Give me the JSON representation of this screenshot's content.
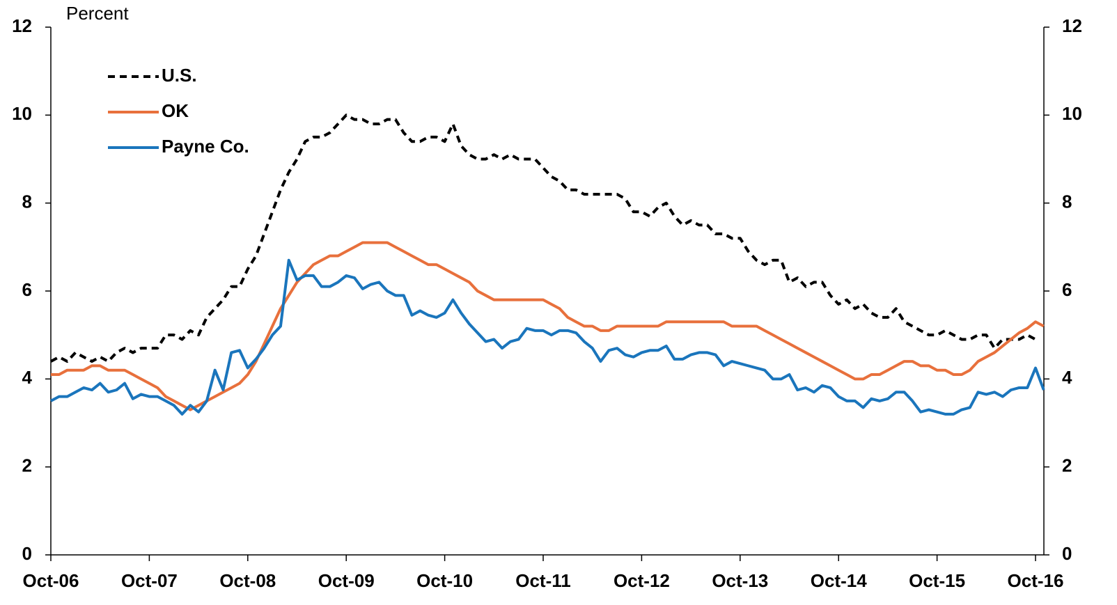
{
  "chart_data": {
    "type": "line",
    "y_label": "Percent",
    "legend": "upper left",
    "grid": false,
    "x": [
      "Oct-06",
      null,
      null,
      null,
      null,
      null,
      null,
      null,
      null,
      null,
      null,
      null,
      "Oct-07",
      null,
      null,
      null,
      null,
      null,
      null,
      null,
      null,
      null,
      null,
      null,
      "Oct-08",
      null,
      null,
      null,
      null,
      null,
      null,
      null,
      null,
      null,
      null,
      null,
      "Oct-09",
      null,
      null,
      null,
      null,
      null,
      null,
      null,
      null,
      null,
      null,
      null,
      "Oct-10",
      null,
      null,
      null,
      null,
      null,
      null,
      null,
      null,
      null,
      null,
      null,
      "Oct-11",
      null,
      null,
      null,
      null,
      null,
      null,
      null,
      null,
      null,
      null,
      null,
      "Oct-12",
      null,
      null,
      null,
      null,
      null,
      null,
      null,
      null,
      null,
      null,
      null,
      "Oct-13",
      null,
      null,
      null,
      null,
      null,
      null,
      null,
      null,
      null,
      null,
      null,
      "Oct-14",
      null,
      null,
      null,
      null,
      null,
      null,
      null,
      null,
      null,
      null,
      null,
      "Oct-15",
      null,
      null,
      null,
      null,
      null,
      null,
      null,
      null,
      null,
      null,
      null,
      "Oct-16",
      null
    ],
    "series": [
      {
        "name": "U.S.",
        "color": "#000000",
        "dash": true,
        "values": [
          4.4,
          4.5,
          4.4,
          4.6,
          4.5,
          4.4,
          4.5,
          4.4,
          4.6,
          4.7,
          4.6,
          4.7,
          4.7,
          4.7,
          5.0,
          5.0,
          4.9,
          5.1,
          5.0,
          5.4,
          5.6,
          5.8,
          6.1,
          6.1,
          6.5,
          6.8,
          7.3,
          7.8,
          8.3,
          8.7,
          9.0,
          9.4,
          9.5,
          9.5,
          9.6,
          9.8,
          10.0,
          9.9,
          9.9,
          9.8,
          9.8,
          9.9,
          9.9,
          9.6,
          9.4,
          9.4,
          9.5,
          9.5,
          9.4,
          9.8,
          9.3,
          9.1,
          9.0,
          9.0,
          9.1,
          9.0,
          9.1,
          9.0,
          9.0,
          9.0,
          8.8,
          8.6,
          8.5,
          8.3,
          8.3,
          8.2,
          8.2,
          8.2,
          8.2,
          8.2,
          8.1,
          7.8,
          7.8,
          7.7,
          7.9,
          8.0,
          7.7,
          7.5,
          7.6,
          7.5,
          7.5,
          7.3,
          7.3,
          7.2,
          7.2,
          6.9,
          6.7,
          6.6,
          6.7,
          6.7,
          6.2,
          6.3,
          6.1,
          6.2,
          6.2,
          5.9,
          5.7,
          5.8,
          5.6,
          5.7,
          5.5,
          5.4,
          5.4,
          5.6,
          5.3,
          5.2,
          5.1,
          5.0,
          5.0,
          5.1,
          5.0,
          4.9,
          4.9,
          5.0,
          5.0,
          4.7,
          4.9,
          4.9,
          4.9,
          5.0,
          4.9,
          null
        ]
      },
      {
        "name": "OK",
        "color": "#e8703c",
        "dash": false,
        "values": [
          4.1,
          4.1,
          4.2,
          4.2,
          4.2,
          4.3,
          4.3,
          4.2,
          4.2,
          4.2,
          4.1,
          4.0,
          3.9,
          3.8,
          3.6,
          3.5,
          3.4,
          3.3,
          3.4,
          3.5,
          3.6,
          3.7,
          3.8,
          3.9,
          4.1,
          4.4,
          4.8,
          5.2,
          5.6,
          5.9,
          6.2,
          6.4,
          6.6,
          6.7,
          6.8,
          6.8,
          6.9,
          7.0,
          7.1,
          7.1,
          7.1,
          7.1,
          7.0,
          6.9,
          6.8,
          6.7,
          6.6,
          6.6,
          6.5,
          6.4,
          6.3,
          6.2,
          6.0,
          5.9,
          5.8,
          5.8,
          5.8,
          5.8,
          5.8,
          5.8,
          5.8,
          5.7,
          5.6,
          5.4,
          5.3,
          5.2,
          5.2,
          5.1,
          5.1,
          5.2,
          5.2,
          5.2,
          5.2,
          5.2,
          5.2,
          5.3,
          5.3,
          5.3,
          5.3,
          5.3,
          5.3,
          5.3,
          5.3,
          5.2,
          5.2,
          5.2,
          5.2,
          5.1,
          5.0,
          4.9,
          4.8,
          4.7,
          4.6,
          4.5,
          4.4,
          4.3,
          4.2,
          4.1,
          4.0,
          4.0,
          4.1,
          4.1,
          4.2,
          4.3,
          4.4,
          4.4,
          4.3,
          4.3,
          4.2,
          4.2,
          4.1,
          4.1,
          4.2,
          4.4,
          4.5,
          4.6,
          4.75,
          4.9,
          5.05,
          5.15,
          5.3,
          5.2
        ]
      },
      {
        "name": "Payne Co.",
        "color": "#1a75bc",
        "dash": false,
        "values": [
          3.5,
          3.6,
          3.6,
          3.7,
          3.8,
          3.75,
          3.9,
          3.7,
          3.75,
          3.9,
          3.55,
          3.65,
          3.6,
          3.6,
          3.5,
          3.4,
          3.2,
          3.4,
          3.25,
          3.5,
          4.2,
          3.75,
          4.6,
          4.65,
          4.25,
          4.45,
          4.7,
          5.0,
          5.2,
          6.7,
          6.25,
          6.35,
          6.35,
          6.1,
          6.1,
          6.2,
          6.35,
          6.3,
          6.05,
          6.15,
          6.2,
          6.0,
          5.9,
          5.9,
          5.45,
          5.55,
          5.45,
          5.4,
          5.5,
          5.8,
          5.5,
          5.25,
          5.05,
          4.85,
          4.9,
          4.7,
          4.85,
          4.9,
          5.15,
          5.1,
          5.1,
          5.0,
          5.1,
          5.1,
          5.05,
          4.85,
          4.7,
          4.4,
          4.65,
          4.7,
          4.55,
          4.5,
          4.6,
          4.65,
          4.65,
          4.75,
          4.45,
          4.45,
          4.55,
          4.6,
          4.6,
          4.55,
          4.3,
          4.4,
          4.35,
          4.3,
          4.25,
          4.2,
          4.0,
          4.0,
          4.1,
          3.75,
          3.8,
          3.7,
          3.85,
          3.8,
          3.6,
          3.5,
          3.5,
          3.35,
          3.55,
          3.5,
          3.55,
          3.7,
          3.7,
          3.5,
          3.25,
          3.3,
          3.25,
          3.2,
          3.2,
          3.3,
          3.35,
          3.7,
          3.65,
          3.7,
          3.6,
          3.75,
          3.8,
          3.8,
          4.25,
          3.75
        ]
      }
    ],
    "ylim": [
      0,
      12
    ],
    "yticks": [
      0,
      2,
      4,
      6,
      8,
      10,
      12
    ],
    "y2lim": [
      0,
      12
    ],
    "y2ticks": [
      0,
      2,
      4,
      6,
      8,
      10,
      12
    ]
  }
}
